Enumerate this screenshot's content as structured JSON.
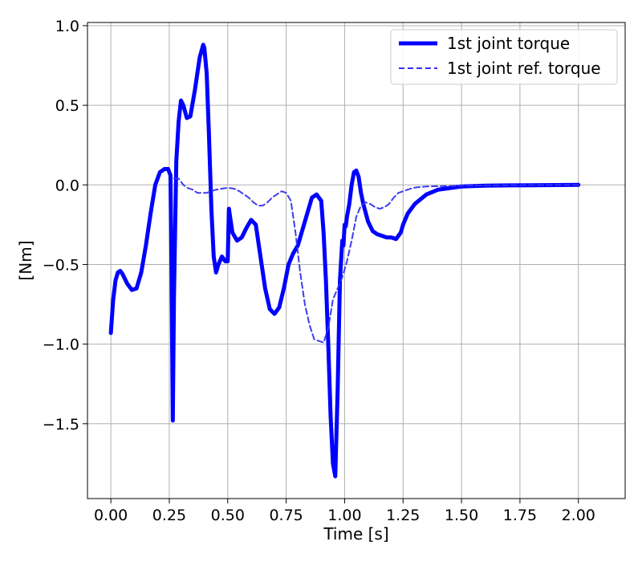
{
  "chart_data": {
    "type": "line",
    "title": "",
    "xlabel": "Time [s]",
    "ylabel": "[Nm]",
    "xlim": [
      -0.1,
      2.2
    ],
    "ylim": [
      -1.97,
      1.02
    ],
    "xticks": [
      0.0,
      0.25,
      0.5,
      0.75,
      1.0,
      1.25,
      1.5,
      1.75,
      2.0
    ],
    "xtick_labels": [
      "0.00",
      "0.25",
      "0.50",
      "0.75",
      "1.00",
      "1.25",
      "1.50",
      "1.75",
      "2.00"
    ],
    "yticks": [
      1.0,
      0.5,
      0.0,
      -0.5,
      -1.0,
      -1.5
    ],
    "ytick_labels": [
      "1.0",
      "0.5",
      "0.0",
      "−0.5",
      "−1.0",
      "−1.5"
    ],
    "grid": true,
    "legend_position": "top-right",
    "colors": {
      "torque": "#0000ff",
      "reference": "#3333ee"
    },
    "series": [
      {
        "name": "1st joint torque",
        "style": "solid-thick",
        "x": [
          0.0,
          0.01,
          0.02,
          0.03,
          0.04,
          0.05,
          0.07,
          0.09,
          0.11,
          0.13,
          0.15,
          0.17,
          0.19,
          0.21,
          0.23,
          0.245,
          0.255,
          0.26,
          0.265,
          0.27,
          0.28,
          0.29,
          0.3,
          0.31,
          0.325,
          0.34,
          0.36,
          0.38,
          0.395,
          0.4,
          0.41,
          0.42,
          0.43,
          0.44,
          0.45,
          0.46,
          0.475,
          0.49,
          0.5,
          0.505,
          0.51,
          0.52,
          0.54,
          0.56,
          0.58,
          0.6,
          0.62,
          0.64,
          0.66,
          0.68,
          0.7,
          0.72,
          0.74,
          0.76,
          0.78,
          0.8,
          0.82,
          0.84,
          0.86,
          0.88,
          0.9,
          0.91,
          0.92,
          0.93,
          0.94,
          0.95,
          0.96,
          0.97,
          0.975,
          0.98,
          0.99,
          0.995,
          1.0,
          1.005,
          1.01,
          1.02,
          1.03,
          1.04,
          1.05,
          1.06,
          1.07,
          1.08,
          1.1,
          1.12,
          1.14,
          1.16,
          1.18,
          1.2,
          1.22,
          1.24,
          1.25,
          1.27,
          1.3,
          1.35,
          1.4,
          1.45,
          1.5,
          1.6,
          1.7,
          1.8,
          1.9,
          2.0
        ],
        "values": [
          -0.93,
          -0.72,
          -0.6,
          -0.55,
          -0.54,
          -0.56,
          -0.62,
          -0.66,
          -0.65,
          -0.55,
          -0.38,
          -0.18,
          0.0,
          0.08,
          0.1,
          0.1,
          0.06,
          -0.6,
          -1.48,
          -0.7,
          0.15,
          0.4,
          0.53,
          0.5,
          0.42,
          0.43,
          0.6,
          0.8,
          0.88,
          0.86,
          0.7,
          0.3,
          -0.15,
          -0.45,
          -0.55,
          -0.5,
          -0.45,
          -0.48,
          -0.48,
          -0.15,
          -0.2,
          -0.3,
          -0.35,
          -0.33,
          -0.27,
          -0.22,
          -0.25,
          -0.45,
          -0.65,
          -0.78,
          -0.81,
          -0.77,
          -0.65,
          -0.5,
          -0.43,
          -0.38,
          -0.28,
          -0.18,
          -0.08,
          -0.06,
          -0.1,
          -0.3,
          -0.6,
          -1.0,
          -1.45,
          -1.75,
          -1.83,
          -1.3,
          -0.95,
          -0.6,
          -0.35,
          -0.38,
          -0.25,
          -0.26,
          -0.2,
          -0.12,
          0.0,
          0.08,
          0.09,
          0.05,
          -0.05,
          -0.12,
          -0.23,
          -0.29,
          -0.31,
          -0.32,
          -0.33,
          -0.33,
          -0.34,
          -0.3,
          -0.25,
          -0.18,
          -0.12,
          -0.06,
          -0.03,
          -0.02,
          -0.01,
          -0.005,
          -0.003,
          -0.002,
          -0.001,
          0.0
        ]
      },
      {
        "name": "1st joint ref. torque",
        "style": "dashed-thin",
        "x": [
          0.27,
          0.29,
          0.31,
          0.33,
          0.35,
          0.37,
          0.39,
          0.41,
          0.43,
          0.45,
          0.47,
          0.49,
          0.51,
          0.53,
          0.55,
          0.57,
          0.59,
          0.61,
          0.63,
          0.65,
          0.67,
          0.69,
          0.71,
          0.73,
          0.75,
          0.77,
          0.79,
          0.81,
          0.83,
          0.85,
          0.87,
          0.89,
          0.91,
          0.93,
          0.95,
          0.97,
          0.99,
          1.01,
          1.03,
          1.05,
          1.07,
          1.09,
          1.11,
          1.13,
          1.15,
          1.17,
          1.19,
          1.21,
          1.23,
          1.25,
          1.27,
          1.29,
          1.31,
          1.35,
          1.4,
          1.5,
          1.6,
          1.7,
          1.8,
          1.9,
          2.0
        ],
        "values": [
          0.04,
          0.04,
          0.0,
          -0.02,
          -0.03,
          -0.05,
          -0.05,
          -0.05,
          -0.04,
          -0.03,
          -0.025,
          -0.02,
          -0.02,
          -0.025,
          -0.04,
          -0.06,
          -0.08,
          -0.11,
          -0.13,
          -0.13,
          -0.11,
          -0.08,
          -0.06,
          -0.04,
          -0.05,
          -0.1,
          -0.3,
          -0.55,
          -0.75,
          -0.88,
          -0.97,
          -0.98,
          -0.99,
          -0.9,
          -0.72,
          -0.65,
          -0.58,
          -0.48,
          -0.35,
          -0.2,
          -0.13,
          -0.11,
          -0.12,
          -0.14,
          -0.15,
          -0.14,
          -0.12,
          -0.08,
          -0.05,
          -0.04,
          -0.03,
          -0.02,
          -0.015,
          -0.01,
          -0.008,
          -0.005,
          -0.003,
          -0.002,
          -0.001,
          0.0,
          0.0
        ]
      }
    ]
  }
}
